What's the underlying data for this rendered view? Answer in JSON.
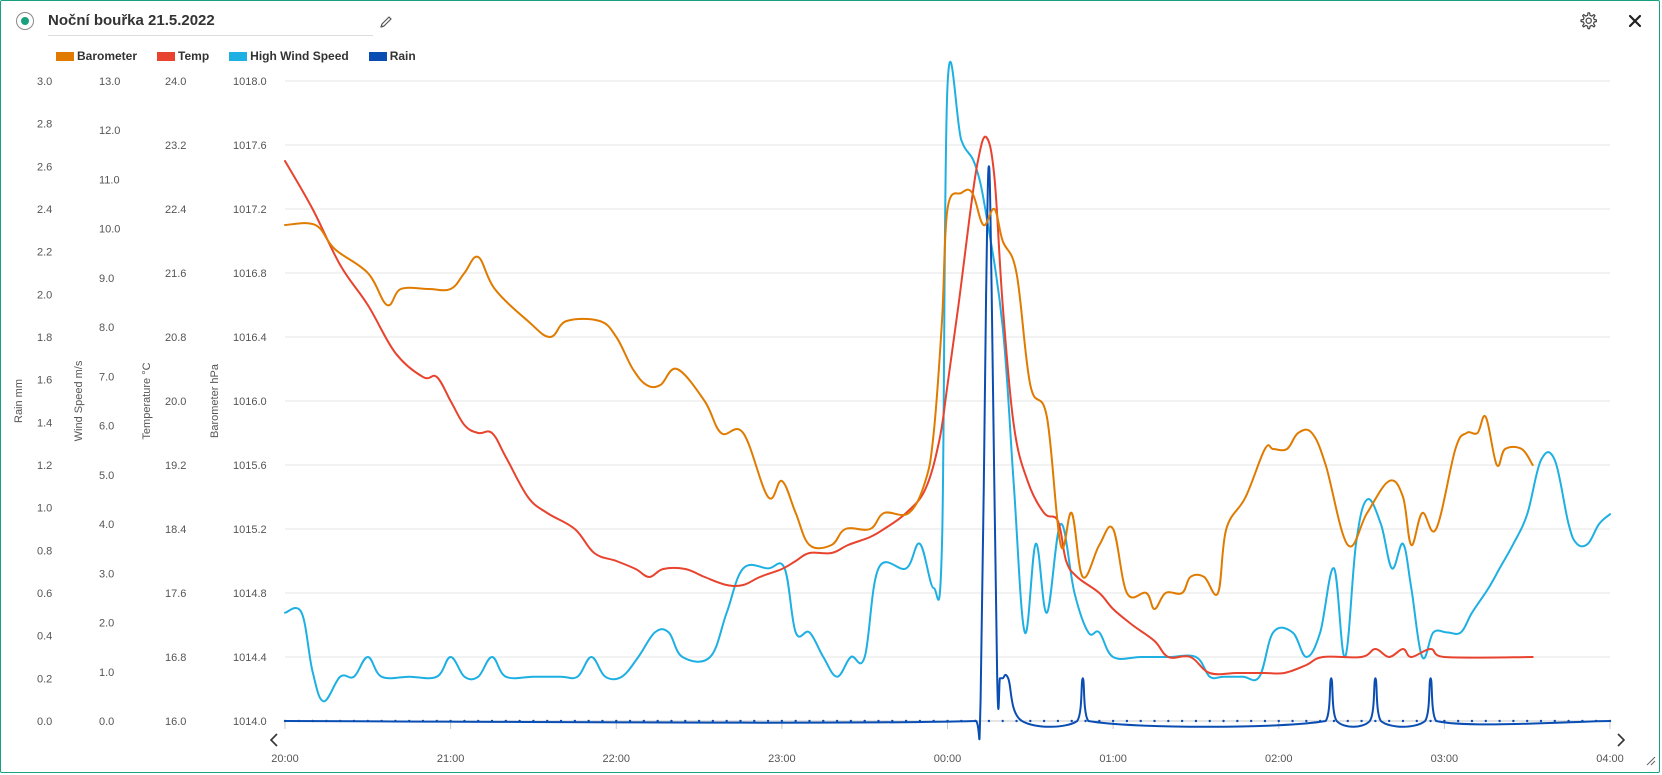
{
  "header": {
    "title": "Noční bouřka 21.5.2022",
    "status_icon": "status-dot-icon",
    "edit_icon": "pencil-icon",
    "settings_icon": "gear-icon",
    "close_icon": "close-icon",
    "accent_color": "#19a07e"
  },
  "chart_data": {
    "type": "line",
    "x_axis": {
      "ticks": [
        "20:00",
        "21:00",
        "22:00",
        "23:00",
        "00:00",
        "01:00",
        "02:00",
        "03:00",
        "04:00"
      ],
      "range": [
        "20:00",
        "04:00"
      ]
    },
    "y_axes": [
      {
        "id": "rain",
        "label": "Rain mm",
        "range": [
          0,
          3
        ],
        "ticks": [
          "0.0",
          "0.2",
          "0.4",
          "0.6",
          "0.8",
          "1.0",
          "1.2",
          "1.4",
          "1.6",
          "1.8",
          "2.0",
          "2.2",
          "2.4",
          "2.6",
          "2.8",
          "3.0"
        ]
      },
      {
        "id": "wind",
        "label": "Wind Speed m/s",
        "range": [
          0,
          13
        ],
        "ticks": [
          "0.0",
          "1.0",
          "2.0",
          "3.0",
          "4.0",
          "5.0",
          "6.0",
          "7.0",
          "8.0",
          "9.0",
          "10.0",
          "11.0",
          "12.0",
          "13.0"
        ]
      },
      {
        "id": "temp",
        "label": "Temperature °C",
        "range": [
          16,
          24
        ],
        "ticks": [
          "16.0",
          "16.8",
          "17.6",
          "18.4",
          "19.2",
          "20.0",
          "20.8",
          "21.6",
          "22.4",
          "23.2",
          "24.0"
        ]
      },
      {
        "id": "baro",
        "label": "Barometer hPa",
        "range": [
          1014,
          1018
        ],
        "ticks": [
          "1014.0",
          "1014.4",
          "1014.8",
          "1015.2",
          "1015.6",
          "1016.0",
          "1016.4",
          "1016.8",
          "1017.2",
          "1017.6",
          "1018.0"
        ]
      }
    ],
    "grid": true,
    "legend_placement": "top-left",
    "series": [
      {
        "name": "Barometer",
        "axis": "baro",
        "color": "#e07b00",
        "points": [
          [
            "20:00",
            1017.1
          ],
          [
            "20:11",
            1017.1
          ],
          [
            "20:18",
            1016.95
          ],
          [
            "20:30",
            1016.8
          ],
          [
            "20:37",
            1016.6
          ],
          [
            "20:42",
            1016.7
          ],
          [
            "20:52",
            1016.7
          ],
          [
            "21:00",
            1016.7
          ],
          [
            "21:05",
            1016.8
          ],
          [
            "21:10",
            1016.9
          ],
          [
            "21:16",
            1016.7
          ],
          [
            "21:28",
            1016.5
          ],
          [
            "21:36",
            1016.4
          ],
          [
            "21:42",
            1016.5
          ],
          [
            "21:54",
            1016.5
          ],
          [
            "22:00",
            1016.4
          ],
          [
            "22:06",
            1016.2
          ],
          [
            "22:11",
            1016.1
          ],
          [
            "22:16",
            1016.1
          ],
          [
            "22:22",
            1016.2
          ],
          [
            "22:32",
            1016.0
          ],
          [
            "22:38",
            1015.8
          ],
          [
            "22:46",
            1015.8
          ],
          [
            "22:55",
            1015.4
          ],
          [
            "23:00",
            1015.5
          ],
          [
            "23:05",
            1015.3
          ],
          [
            "23:10",
            1015.1
          ],
          [
            "23:18",
            1015.1
          ],
          [
            "23:23",
            1015.2
          ],
          [
            "23:32",
            1015.2
          ],
          [
            "23:37",
            1015.3
          ],
          [
            "23:46",
            1015.3
          ],
          [
            "23:52",
            1015.5
          ],
          [
            "23:55",
            1015.8
          ],
          [
            "23:58",
            1016.5
          ],
          [
            "00:00",
            1017.2
          ],
          [
            "00:05",
            1017.3
          ],
          [
            "00:09",
            1017.3
          ],
          [
            "00:13",
            1017.1
          ],
          [
            "00:17",
            1017.2
          ],
          [
            "00:20",
            1017.0
          ],
          [
            "00:25",
            1016.8
          ],
          [
            "00:30",
            1016.1
          ],
          [
            "00:36",
            1015.9
          ],
          [
            "00:41",
            1015.1
          ],
          [
            "00:45",
            1015.3
          ],
          [
            "00:49",
            1014.9
          ],
          [
            "00:55",
            1015.1
          ],
          [
            "01:00",
            1015.2
          ],
          [
            "01:05",
            1014.8
          ],
          [
            "01:12",
            1014.8
          ],
          [
            "01:15",
            1014.7
          ],
          [
            "01:19",
            1014.8
          ],
          [
            "01:25",
            1014.8
          ],
          [
            "01:28",
            1014.9
          ],
          [
            "01:33",
            1014.9
          ],
          [
            "01:38",
            1014.8
          ],
          [
            "01:41",
            1015.2
          ],
          [
            "01:48",
            1015.4
          ],
          [
            "01:55",
            1015.7
          ],
          [
            "01:58",
            1015.7
          ],
          [
            "02:03",
            1015.7
          ],
          [
            "02:07",
            1015.8
          ],
          [
            "02:12",
            1015.8
          ],
          [
            "02:17",
            1015.6
          ],
          [
            "02:25",
            1015.1
          ],
          [
            "02:32",
            1015.3
          ],
          [
            "02:40",
            1015.5
          ],
          [
            "02:45",
            1015.4
          ],
          [
            "02:48",
            1015.1
          ],
          [
            "02:52",
            1015.3
          ],
          [
            "02:57",
            1015.2
          ],
          [
            "03:04",
            1015.7
          ],
          [
            "03:08",
            1015.8
          ],
          [
            "03:12",
            1015.8
          ],
          [
            "03:15",
            1015.9
          ],
          [
            "03:19",
            1015.6
          ],
          [
            "03:22",
            1015.7
          ],
          [
            "03:28",
            1015.7
          ],
          [
            "03:32",
            1015.6
          ]
        ]
      },
      {
        "name": "Temp",
        "axis": "temp",
        "color": "#e8432e",
        "points": [
          [
            "20:00",
            23.0
          ],
          [
            "20:10",
            22.4
          ],
          [
            "20:20",
            21.7
          ],
          [
            "20:30",
            21.2
          ],
          [
            "20:40",
            20.6
          ],
          [
            "20:50",
            20.3
          ],
          [
            "20:55",
            20.3
          ],
          [
            "21:00",
            20.0
          ],
          [
            "21:05",
            19.7
          ],
          [
            "21:10",
            19.6
          ],
          [
            "21:15",
            19.6
          ],
          [
            "21:20",
            19.3
          ],
          [
            "21:28",
            18.8
          ],
          [
            "21:35",
            18.6
          ],
          [
            "21:45",
            18.4
          ],
          [
            "21:52",
            18.1
          ],
          [
            "22:00",
            18.0
          ],
          [
            "22:07",
            17.9
          ],
          [
            "22:12",
            17.8
          ],
          [
            "22:17",
            17.9
          ],
          [
            "22:25",
            17.9
          ],
          [
            "22:32",
            17.8
          ],
          [
            "22:40",
            17.7
          ],
          [
            "22:46",
            17.7
          ],
          [
            "22:52",
            17.8
          ],
          [
            "23:00",
            17.9
          ],
          [
            "23:05",
            18.0
          ],
          [
            "23:10",
            18.1
          ],
          [
            "23:18",
            18.1
          ],
          [
            "23:24",
            18.2
          ],
          [
            "23:32",
            18.3
          ],
          [
            "23:37",
            18.4
          ],
          [
            "23:45",
            18.6
          ],
          [
            "23:52",
            18.9
          ],
          [
            "23:57",
            19.5
          ],
          [
            "00:00",
            20.2
          ],
          [
            "00:04",
            21.2
          ],
          [
            "00:08",
            22.3
          ],
          [
            "00:11",
            23.0
          ],
          [
            "00:14",
            23.3
          ],
          [
            "00:17",
            22.8
          ],
          [
            "00:20",
            21.2
          ],
          [
            "00:24",
            19.7
          ],
          [
            "00:29",
            19.0
          ],
          [
            "00:35",
            18.6
          ],
          [
            "00:40",
            18.5
          ],
          [
            "00:43",
            18.0
          ],
          [
            "00:47",
            17.8
          ],
          [
            "00:55",
            17.6
          ],
          [
            "01:00",
            17.4
          ],
          [
            "01:07",
            17.2
          ],
          [
            "01:15",
            17.0
          ],
          [
            "01:20",
            16.8
          ],
          [
            "01:28",
            16.8
          ],
          [
            "01:35",
            16.6
          ],
          [
            "01:45",
            16.6
          ],
          [
            "01:55",
            16.6
          ],
          [
            "02:02",
            16.6
          ],
          [
            "02:10",
            16.7
          ],
          [
            "02:16",
            16.8
          ],
          [
            "02:30",
            16.8
          ],
          [
            "02:35",
            16.9
          ],
          [
            "02:40",
            16.8
          ],
          [
            "02:45",
            16.9
          ],
          [
            "02:48",
            16.8
          ],
          [
            "02:55",
            16.9
          ],
          [
            "03:00",
            16.8
          ],
          [
            "03:32",
            16.8
          ]
        ]
      },
      {
        "name": "High Wind Speed",
        "axis": "wind",
        "color": "#1eb0e2",
        "points": [
          [
            "20:00",
            2.2
          ],
          [
            "20:06",
            2.2
          ],
          [
            "20:10",
            1.0
          ],
          [
            "20:14",
            0.4
          ],
          [
            "20:20",
            0.9
          ],
          [
            "20:25",
            0.9
          ],
          [
            "20:30",
            1.3
          ],
          [
            "20:35",
            0.9
          ],
          [
            "20:45",
            0.9
          ],
          [
            "20:55",
            0.9
          ],
          [
            "21:00",
            1.3
          ],
          [
            "21:05",
            0.9
          ],
          [
            "21:10",
            0.9
          ],
          [
            "21:15",
            1.3
          ],
          [
            "21:20",
            0.9
          ],
          [
            "21:30",
            0.9
          ],
          [
            "21:40",
            0.9
          ],
          [
            "21:46",
            0.9
          ],
          [
            "21:51",
            1.3
          ],
          [
            "21:56",
            0.9
          ],
          [
            "22:02",
            0.9
          ],
          [
            "22:08",
            1.3
          ],
          [
            "22:14",
            1.8
          ],
          [
            "22:19",
            1.8
          ],
          [
            "22:24",
            1.3
          ],
          [
            "22:34",
            1.3
          ],
          [
            "22:40",
            2.2
          ],
          [
            "22:46",
            3.1
          ],
          [
            "22:55",
            3.1
          ],
          [
            "23:01",
            3.1
          ],
          [
            "23:05",
            1.8
          ],
          [
            "23:10",
            1.8
          ],
          [
            "23:15",
            1.3
          ],
          [
            "23:20",
            0.9
          ],
          [
            "23:25",
            1.3
          ],
          [
            "23:30",
            1.3
          ],
          [
            "23:35",
            3.1
          ],
          [
            "23:45",
            3.1
          ],
          [
            "23:50",
            3.6
          ],
          [
            "23:55",
            2.7
          ],
          [
            "23:58",
            3.6
          ],
          [
            "00:00",
            12.9
          ],
          [
            "00:05",
            11.8
          ],
          [
            "00:10",
            11.3
          ],
          [
            "00:14",
            10.3
          ],
          [
            "00:20",
            8.0
          ],
          [
            "00:24",
            4.8
          ],
          [
            "00:28",
            1.8
          ],
          [
            "00:32",
            3.6
          ],
          [
            "00:36",
            2.2
          ],
          [
            "00:41",
            4.0
          ],
          [
            "00:46",
            2.6
          ],
          [
            "00:51",
            1.8
          ],
          [
            "00:55",
            1.8
          ],
          [
            "01:00",
            1.3
          ],
          [
            "01:10",
            1.3
          ],
          [
            "01:20",
            1.3
          ],
          [
            "01:30",
            1.3
          ],
          [
            "01:35",
            0.9
          ],
          [
            "01:40",
            0.9
          ],
          [
            "01:47",
            0.9
          ],
          [
            "01:53",
            0.9
          ],
          [
            "01:58",
            1.8
          ],
          [
            "02:05",
            1.8
          ],
          [
            "02:10",
            1.3
          ],
          [
            "02:15",
            1.8
          ],
          [
            "02:20",
            3.1
          ],
          [
            "02:24",
            1.3
          ],
          [
            "02:28",
            3.6
          ],
          [
            "02:32",
            4.5
          ],
          [
            "02:37",
            4.0
          ],
          [
            "02:41",
            3.1
          ],
          [
            "02:45",
            3.6
          ],
          [
            "02:48",
            2.7
          ],
          [
            "02:52",
            1.3
          ],
          [
            "02:56",
            1.8
          ],
          [
            "03:01",
            1.8
          ],
          [
            "03:06",
            1.8
          ],
          [
            "03:10",
            2.2
          ],
          [
            "03:16",
            2.7
          ],
          [
            "03:20",
            3.1
          ],
          [
            "03:25",
            3.6
          ],
          [
            "03:30",
            4.2
          ],
          [
            "03:35",
            5.3
          ],
          [
            "03:40",
            5.3
          ],
          [
            "03:45",
            4.0
          ],
          [
            "03:48",
            3.6
          ],
          [
            "03:52",
            3.6
          ],
          [
            "03:56",
            4.0
          ],
          [
            "04:00",
            4.2
          ]
        ]
      },
      {
        "name": "Rain",
        "axis": "rain",
        "color": "#0b4eb3",
        "points": [
          [
            "20:00",
            0
          ],
          [
            "00:10",
            0
          ],
          [
            "00:12",
            0.1
          ],
          [
            "00:14",
            2.0
          ],
          [
            "00:15",
            2.6
          ],
          [
            "00:16",
            2.0
          ],
          [
            "00:18",
            0.2
          ],
          [
            "00:19",
            0.2
          ],
          [
            "00:20",
            0.2
          ],
          [
            "00:22",
            0.2
          ],
          [
            "00:27",
            0
          ],
          [
            "00:47",
            0
          ],
          [
            "00:49",
            0.2
          ],
          [
            "00:51",
            0
          ],
          [
            "02:17",
            0
          ],
          [
            "02:19",
            0.2
          ],
          [
            "02:21",
            0
          ],
          [
            "02:33",
            0
          ],
          [
            "02:35",
            0.2
          ],
          [
            "02:37",
            0
          ],
          [
            "02:53",
            0
          ],
          [
            "02:55",
            0.2
          ],
          [
            "02:57",
            0
          ],
          [
            "04:00",
            0
          ]
        ]
      }
    ]
  }
}
